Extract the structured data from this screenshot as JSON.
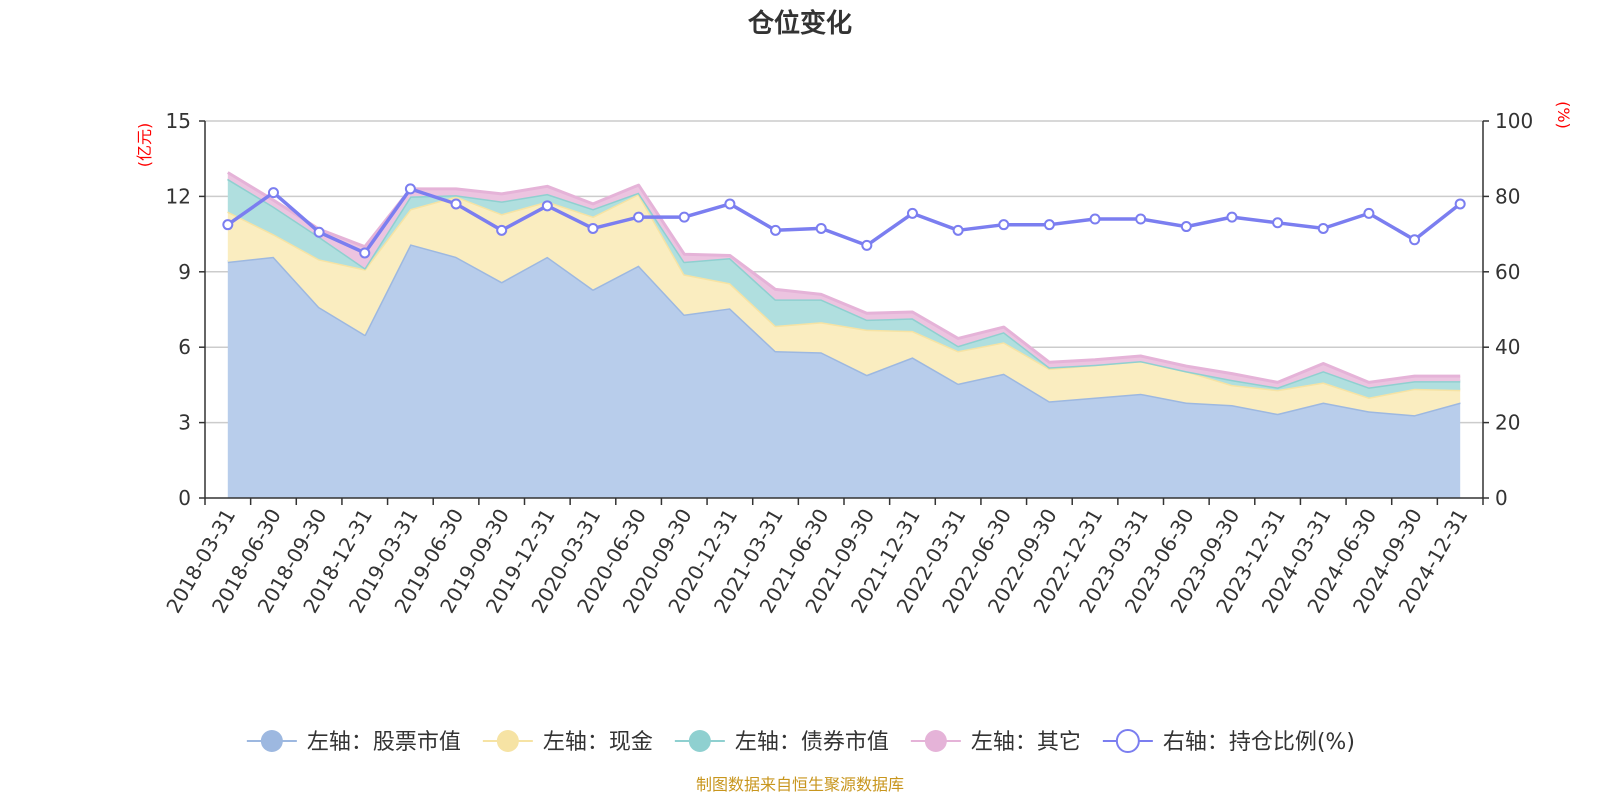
{
  "chart_data": {
    "type": "area",
    "title": "仓位变化",
    "left_axis_unit": "(亿元)",
    "right_axis_unit": "(%)",
    "left_ylim": [
      0,
      15
    ],
    "left_ticks": [
      0,
      3,
      6,
      9,
      12,
      15
    ],
    "right_ylim": [
      0,
      100
    ],
    "right_ticks": [
      0,
      20,
      40,
      60,
      80,
      100
    ],
    "categories": [
      "2018-03-31",
      "2018-06-30",
      "2018-09-30",
      "2018-12-31",
      "2019-03-31",
      "2019-06-30",
      "2019-09-30",
      "2019-12-31",
      "2020-03-31",
      "2020-06-30",
      "2020-09-30",
      "2020-12-31",
      "2021-03-31",
      "2021-06-30",
      "2021-09-30",
      "2021-12-31",
      "2022-03-31",
      "2022-06-30",
      "2022-09-30",
      "2022-12-31",
      "2023-03-31",
      "2023-06-30",
      "2023-09-30",
      "2023-12-31",
      "2024-03-31",
      "2024-06-30",
      "2024-09-30",
      "2024-12-31"
    ],
    "series": [
      {
        "name": "左轴：股票市值",
        "axis": "left",
        "stacked": true,
        "color": "#9db8e0",
        "fill": "#b8cdeb",
        "values": [
          9.4,
          9.6,
          7.6,
          6.5,
          10.1,
          9.6,
          8.6,
          9.6,
          8.3,
          9.25,
          7.3,
          7.55,
          5.85,
          5.8,
          4.9,
          5.6,
          4.55,
          4.95,
          3.85,
          4.0,
          4.15,
          3.8,
          3.7,
          3.35,
          3.8,
          3.45,
          3.3,
          3.8
        ]
      },
      {
        "name": "左轴：现金",
        "axis": "left",
        "stacked": true,
        "color": "#f6e3a4",
        "fill": "#faedc0",
        "values": [
          2.0,
          0.9,
          1.9,
          2.6,
          1.4,
          2.4,
          2.7,
          2.2,
          2.9,
          2.85,
          1.6,
          1.0,
          1.0,
          1.2,
          1.8,
          1.05,
          1.3,
          1.25,
          1.3,
          1.3,
          1.3,
          1.25,
          0.8,
          0.95,
          0.8,
          0.55,
          1.05,
          0.5
        ]
      },
      {
        "name": "左轴：债券市值",
        "axis": "left",
        "stacked": true,
        "color": "#8fd0d0",
        "fill": "#b0dfdf",
        "values": [
          1.3,
          1.1,
          0.9,
          0.05,
          0.5,
          0.05,
          0.5,
          0.3,
          0.3,
          0.05,
          0.5,
          1.0,
          1.05,
          0.9,
          0.4,
          0.5,
          0.2,
          0.4,
          0.05,
          0.0,
          0.0,
          0.0,
          0.2,
          0.1,
          0.45,
          0.4,
          0.3,
          0.35
        ]
      },
      {
        "name": "左轴：其它",
        "axis": "left",
        "stacked": true,
        "color": "#e5b3d8",
        "fill": "#ecc4e0",
        "values": [
          0.25,
          0.25,
          0.3,
          0.85,
          0.3,
          0.25,
          0.3,
          0.3,
          0.2,
          0.3,
          0.3,
          0.1,
          0.4,
          0.2,
          0.25,
          0.25,
          0.3,
          0.2,
          0.2,
          0.2,
          0.2,
          0.2,
          0.25,
          0.2,
          0.3,
          0.2,
          0.2,
          0.2
        ]
      },
      {
        "name": "右轴：持仓比例(%)",
        "axis": "right",
        "stacked": false,
        "color": "#7b7ef0",
        "values": [
          72.5,
          81,
          70.5,
          65,
          82,
          78,
          71,
          77.5,
          71.5,
          74.5,
          74.5,
          78,
          71,
          71.5,
          67,
          75.5,
          71,
          72.5,
          72.5,
          74,
          74,
          72,
          74.5,
          73,
          71.5,
          75.5,
          68.5,
          78
        ]
      }
    ]
  },
  "source_note": "制图数据来自恒生聚源数据库"
}
